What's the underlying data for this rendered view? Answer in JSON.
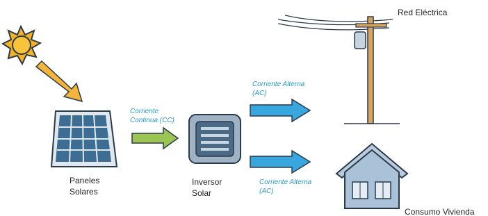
{
  "nodes": [
    {
      "label_lines": [
        "Paneles",
        "Solares"
      ]
    },
    {
      "label_lines": [
        "Inversor",
        "Solar"
      ]
    },
    {
      "label_lines": [
        "Red Eléctrica"
      ]
    },
    {
      "label_lines": [
        "Consumo Vivienda"
      ]
    }
  ],
  "flows": [
    {
      "label_lines": [
        "Corriente",
        "Continua (CC)"
      ]
    },
    {
      "label_lines": [
        "Corriente Alterna",
        "(AC)"
      ]
    },
    {
      "label_lines": [
        "Corriente Alterna",
        "(AC)"
      ]
    }
  ]
}
